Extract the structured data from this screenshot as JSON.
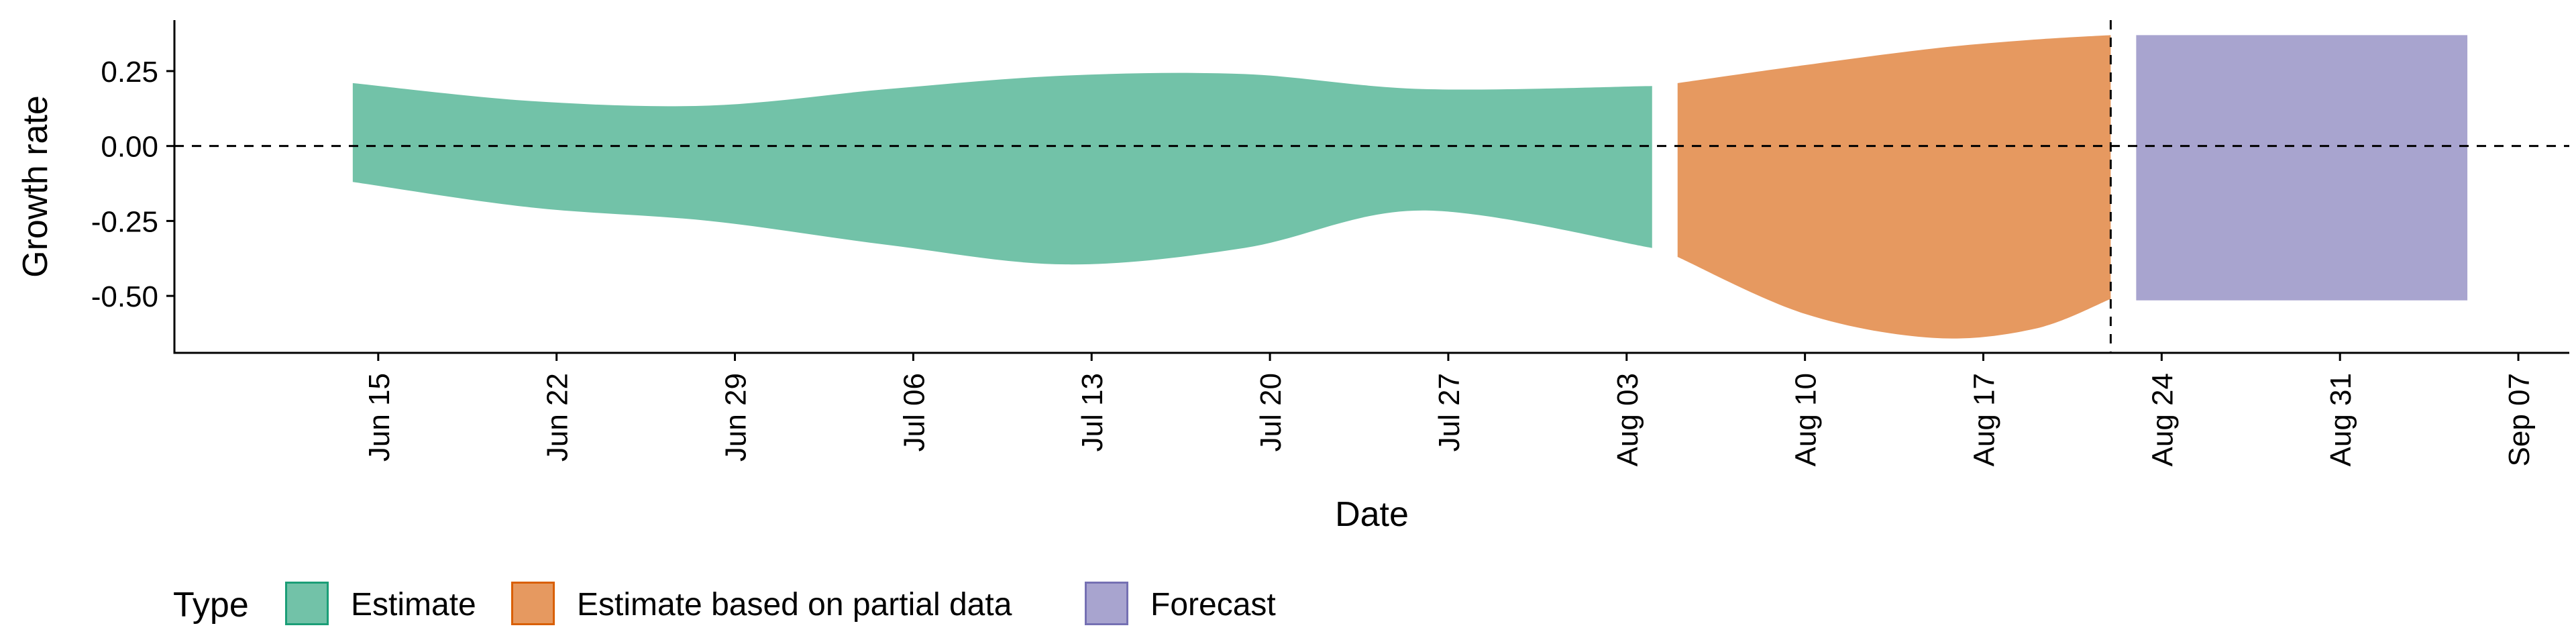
{
  "chart_data": {
    "type": "area",
    "xlabel": "Date",
    "ylabel": "Growth rate",
    "x_tick_labels": [
      "Jun 15",
      "Jun 22",
      "Jun 29",
      "Jul 06",
      "Jul 13",
      "Jul 20",
      "Jul 27",
      "Aug 03",
      "Aug 10",
      "Aug 17",
      "Aug 24",
      "Aug 31",
      "Sep 07"
    ],
    "x_tick_dates": [
      "2020-06-15",
      "2020-06-22",
      "2020-06-29",
      "2020-07-06",
      "2020-07-13",
      "2020-07-20",
      "2020-07-27",
      "2020-08-03",
      "2020-08-10",
      "2020-08-17",
      "2020-08-24",
      "2020-08-31",
      "2020-09-07"
    ],
    "xlim": [
      "2020-06-07",
      "2020-09-09"
    ],
    "y_ticks": [
      0.25,
      0.0,
      -0.25,
      -0.5
    ],
    "y_tick_labels": [
      "0.25",
      "0.00",
      "-0.25",
      "-0.50"
    ],
    "ylim": [
      -0.69,
      0.42
    ],
    "reference_lines": [
      {
        "orientation": "horizontal",
        "value": 0.0,
        "style": "dashed"
      },
      {
        "orientation": "vertical",
        "value": "2020-08-22",
        "style": "dashed"
      }
    ],
    "legend": {
      "title": "Type",
      "position": "bottom-left"
    },
    "series": [
      {
        "name": "Estimate",
        "color": "#72c2a8",
        "border": "#1b9e77",
        "x": [
          "2020-06-14",
          "2020-06-21",
          "2020-06-28",
          "2020-07-05",
          "2020-07-12",
          "2020-07-19",
          "2020-07-26",
          "2020-08-04"
        ],
        "upper": [
          0.21,
          0.15,
          0.135,
          0.19,
          0.235,
          0.24,
          0.19,
          0.2
        ],
        "lower": [
          -0.12,
          -0.205,
          -0.25,
          -0.33,
          -0.395,
          -0.34,
          -0.215,
          -0.34
        ]
      },
      {
        "name": "Estimate based on partial data",
        "color": "#e69960",
        "border": "#d95f02",
        "x": [
          "2020-08-05",
          "2020-08-10",
          "2020-08-15",
          "2020-08-19",
          "2020-08-22"
        ],
        "upper": [
          0.21,
          0.27,
          0.325,
          0.355,
          0.37
        ],
        "lower": [
          -0.37,
          -0.56,
          -0.64,
          -0.61,
          -0.51
        ]
      },
      {
        "name": "Forecast",
        "color": "#a8a4cf",
        "border": "#7570b3",
        "x": [
          "2020-08-23",
          "2020-09-05"
        ],
        "upper": [
          0.37,
          0.37
        ],
        "lower": [
          -0.515,
          -0.515
        ]
      }
    ]
  }
}
